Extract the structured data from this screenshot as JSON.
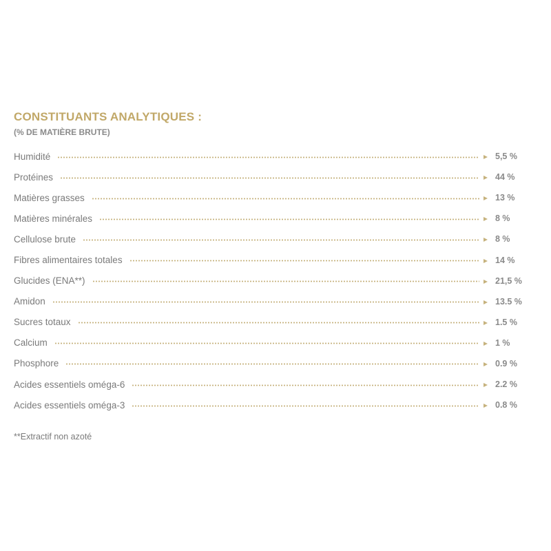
{
  "section": {
    "title": "CONSTITUANTS ANALYTIQUES :",
    "subtitle": "(% DE MATIÈRE BRUTE)"
  },
  "accent_color": "#c1a868",
  "rows": [
    {
      "label": "Humidité",
      "value": "5,5 %"
    },
    {
      "label": "Protéines",
      "value": "44 %"
    },
    {
      "label": "Matières grasses",
      "value": "13 %"
    },
    {
      "label": "Matières minérales",
      "value": "8 %"
    },
    {
      "label": "Cellulose brute",
      "value": "8 %"
    },
    {
      "label": "Fibres alimentaires totales",
      "value": "14 %"
    },
    {
      "label": "Glucides (ENA**)",
      "value": "21,5 %"
    },
    {
      "label": "Amidon",
      "value": "13.5 %"
    },
    {
      "label": "Sucres totaux",
      "value": "1.5 %"
    },
    {
      "label": "Calcium",
      "value": "1 %"
    },
    {
      "label": "Phosphore",
      "value": "0.9 %"
    },
    {
      "label": "Acides essentiels oméga-6",
      "value": "2.2 %"
    },
    {
      "label": "Acides essentiels oméga-3",
      "value": "0.8 %"
    }
  ],
  "footnote": "**Extractif non azoté"
}
